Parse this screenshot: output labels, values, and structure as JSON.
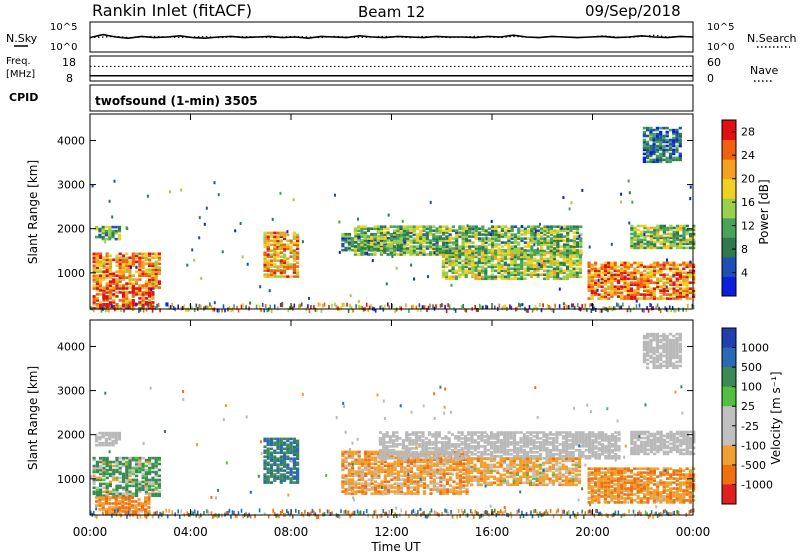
{
  "header": {
    "station": "Rankin Inlet (fitACF)",
    "beam": "Beam 12",
    "date": "09/Sep/2018"
  },
  "strip_labels": {
    "nsky": "N.Sky",
    "nsearch": "N.Search",
    "freq_line1": "Freq.",
    "freq_line2": "[MHz]",
    "nave": "Nave",
    "cpid": "CPID",
    "cpid_value": "twofsound (1-min) 3505",
    "noise_top": "10^5",
    "noise_bottom": "10^0",
    "freq_top": "18",
    "freq_bottom": "8",
    "nave_top": "60",
    "nave_bottom": "0"
  },
  "colors": {
    "power_scale": [
      "#0a1ee0",
      "#1d4fb5",
      "#2f7a4a",
      "#4aa35a",
      "#9bd04a",
      "#f0d020",
      "#f5a020",
      "#f06010",
      "#e21010"
    ],
    "velocity_scale": [
      "#2040b0",
      "#2a6ab0",
      "#3a8a55",
      "#50c040",
      "#c0c0c0",
      "#c0c0c0",
      "#f0a030",
      "#f07010",
      "#e02020"
    ],
    "ground_scatter": "#b9b9b9"
  },
  "chart_data": [
    {
      "type": "line",
      "name": "noise",
      "series": [
        {
          "name": "N.Sky",
          "style": "solid",
          "values": [
            2.4,
            2.9,
            2.5,
            2.3,
            2.6,
            2.4,
            2.5,
            2.7,
            2.4,
            2.3,
            2.5,
            2.6,
            2.4,
            2.5,
            2.6,
            2.4,
            2.5,
            2.3,
            2.6,
            2.5,
            2.4,
            2.7,
            2.5,
            2.4,
            2.6,
            2.5,
            2.4,
            2.6,
            2.5,
            2.5,
            2.4,
            2.6,
            2.5,
            2.8,
            2.5,
            2.4,
            2.6,
            2.5,
            2.4,
            2.5,
            2.6,
            2.4,
            2.5,
            2.7,
            2.5,
            2.4,
            2.6,
            2.5
          ]
        },
        {
          "name": "N.Search",
          "style": "dotted",
          "values": [
            2.4,
            2.5,
            2.6,
            2.4,
            2.5,
            2.6,
            2.5,
            2.4,
            2.5,
            2.6,
            2.4,
            2.5,
            2.6,
            2.5,
            2.4,
            2.5,
            2.6,
            2.5,
            2.4,
            2.6,
            2.5,
            2.4,
            2.5,
            2.6,
            2.5,
            2.4,
            2.6,
            2.5,
            2.4,
            2.5,
            2.6,
            2.5,
            2.4,
            2.6,
            2.5,
            2.4,
            2.6,
            2.5,
            2.4,
            2.5,
            2.7,
            2.5,
            2.4,
            2.6,
            2.8,
            2.5,
            2.6,
            2.5
          ]
        }
      ]
    },
    {
      "type": "line",
      "name": "frequency-nave",
      "series": [
        {
          "name": "Freq.",
          "style": "solid",
          "unit": "MHz",
          "values_mhz": [
            10.1,
            10.1
          ]
        },
        {
          "name": "Nave",
          "style": "dotted",
          "values": [
            35,
            35
          ]
        }
      ]
    },
    {
      "type": "heatmap",
      "name": "power",
      "xlabel": "Time UT",
      "ylabel": "Slant Range [km]",
      "xticks": [
        "00:00",
        "04:00",
        "08:00",
        "12:00",
        "16:00",
        "20:00",
        "00:00"
      ],
      "xlim_hours": [
        0,
        24
      ],
      "yticks": [
        1000,
        2000,
        3000,
        4000
      ],
      "ylim_km": [
        180,
        4600
      ],
      "colorbar": {
        "label": "Power [dB]",
        "ticks": [
          4,
          8,
          12,
          16,
          20,
          24,
          28
        ],
        "range": [
          0,
          30
        ]
      },
      "regions": [
        {
          "t0": 0.1,
          "t1": 2.8,
          "r0": 650,
          "r1": 1450,
          "v": 22
        },
        {
          "t0": 0.1,
          "t1": 2.5,
          "r0": 180,
          "r1": 650,
          "v": 26
        },
        {
          "t0": 0.2,
          "t1": 1.2,
          "r0": 1750,
          "r1": 2050,
          "v": 12
        },
        {
          "t0": 6.9,
          "t1": 8.3,
          "r0": 900,
          "r1": 1900,
          "v": 21
        },
        {
          "t0": 10.0,
          "t1": 12.5,
          "r0": 1500,
          "r1": 1900,
          "v": 9
        },
        {
          "t0": 10.5,
          "t1": 19.5,
          "r0": 1400,
          "r1": 2050,
          "v": 13
        },
        {
          "t0": 14.0,
          "t1": 19.5,
          "r0": 850,
          "r1": 1500,
          "v": 15
        },
        {
          "t0": 19.8,
          "t1": 24.0,
          "r0": 400,
          "r1": 1250,
          "v": 23
        },
        {
          "t0": 21.5,
          "t1": 24.0,
          "r0": 1550,
          "r1": 2050,
          "v": 14
        },
        {
          "t0": 22.0,
          "t1": 23.5,
          "r0": 3500,
          "r1": 4300,
          "v": 7
        }
      ]
    },
    {
      "type": "heatmap",
      "name": "velocity",
      "xlabel": "Time UT",
      "ylabel": "Slant Range [km]",
      "xticks": [
        "00:00",
        "04:00",
        "08:00",
        "12:00",
        "16:00",
        "20:00",
        "00:00"
      ],
      "xlim_hours": [
        0,
        24
      ],
      "yticks": [
        1000,
        2000,
        3000,
        4000
      ],
      "ylim_km": [
        180,
        4600
      ],
      "colorbar": {
        "label": "Velocity [m s⁻¹]",
        "ticks": [
          "1000",
          "500",
          "100",
          "25",
          "-25",
          "-100",
          "-500",
          "-1000"
        ]
      },
      "regions": [
        {
          "t0": 0.1,
          "t1": 2.8,
          "r0": 600,
          "r1": 1500,
          "v": 100,
          "ground": false
        },
        {
          "t0": 0.2,
          "t1": 2.4,
          "r0": 200,
          "r1": 600,
          "v": -300,
          "ground": false
        },
        {
          "t0": 0.2,
          "t1": 1.2,
          "r0": 1750,
          "r1": 2050,
          "v": 0,
          "ground": true
        },
        {
          "t0": 6.9,
          "t1": 8.3,
          "r0": 900,
          "r1": 1900,
          "v": 300,
          "ground": false
        },
        {
          "t0": 10.0,
          "t1": 15.0,
          "r0": 650,
          "r1": 1600,
          "v": -200,
          "ground": false
        },
        {
          "t0": 11.5,
          "t1": 21.0,
          "r0": 1450,
          "r1": 2050,
          "v": 0,
          "ground": true
        },
        {
          "t0": 15.0,
          "t1": 19.5,
          "r0": 850,
          "r1": 1450,
          "v": -150,
          "ground": false
        },
        {
          "t0": 19.8,
          "t1": 24.0,
          "r0": 450,
          "r1": 1250,
          "v": -250,
          "ground": false
        },
        {
          "t0": 21.5,
          "t1": 24.0,
          "r0": 1550,
          "r1": 2050,
          "v": 0,
          "ground": true
        },
        {
          "t0": 22.0,
          "t1": 23.5,
          "r0": 3500,
          "r1": 4300,
          "v": 0,
          "ground": true
        }
      ]
    }
  ]
}
